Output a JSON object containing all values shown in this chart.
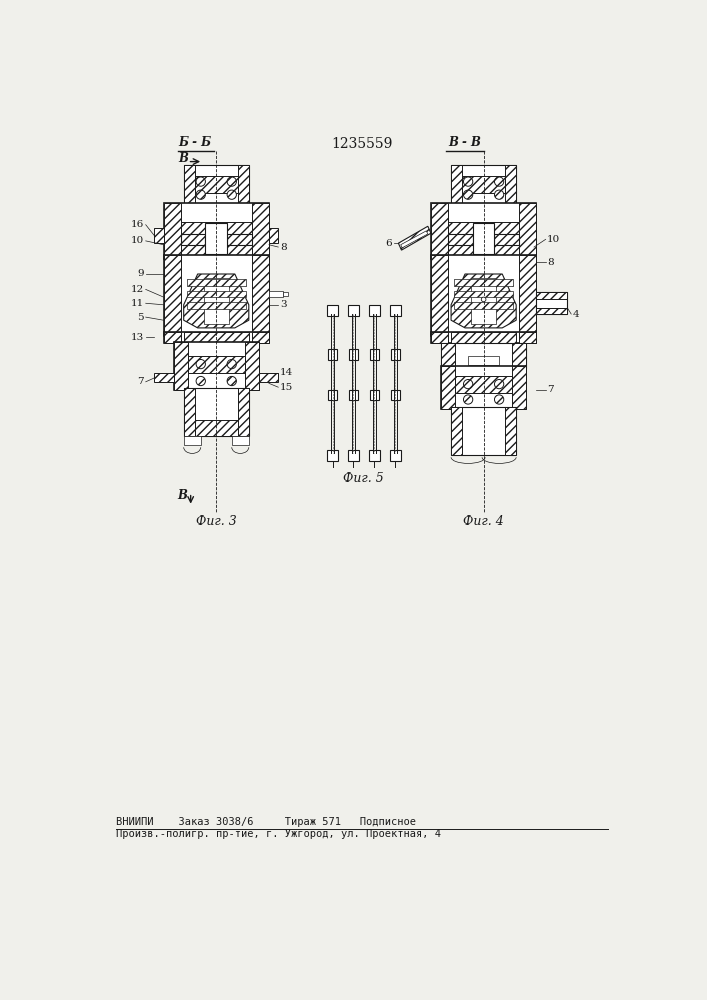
{
  "title": "1235559",
  "bg_color": "#f0f0eb",
  "line_color": "#1a1a1a",
  "footer_line1": "ВНИИПИ    Заказ 3038/6     Тираж 571   Подписное",
  "footer_line2": "Произв.-полигр. пр-тие, г. Ужгород, ул. Проектная, 4",
  "fig3_label": "Фиг. 3",
  "fig4_label": "Фиг. 4",
  "fig5_label": "Фиг. 5",
  "section_bb": "Б - Б",
  "section_vv": "В - В",
  "arrow_v_label": "В"
}
